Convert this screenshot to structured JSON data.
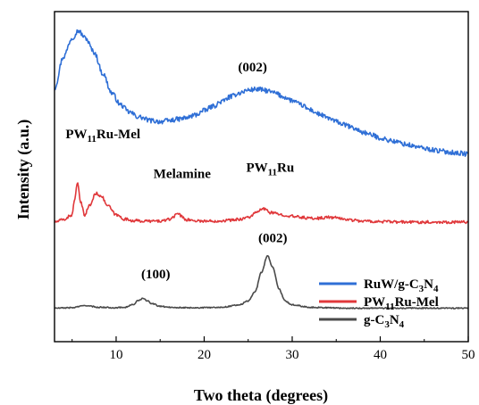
{
  "chart_data": {
    "type": "line",
    "title": "",
    "xlabel": "Two theta (degrees)",
    "ylabel": "Intensity (a.u.)",
    "xlim": [
      3,
      50
    ],
    "xticks": [
      "10",
      "20",
      "30",
      "40",
      "50"
    ],
    "yticks_shown": false,
    "grid": false,
    "legend_position": "bottom-right",
    "series": [
      {
        "name": "RuW/g-C3N4",
        "legend_parts": [
          "RuW/g-C",
          "3",
          "N",
          "4"
        ],
        "color": "#2f6fd6",
        "noise": 0.05,
        "x": [
          3,
          4,
          5,
          5.7,
          6.5,
          7.5,
          8.5,
          9.5,
          10.5,
          11.5,
          12.5,
          14,
          15,
          16,
          17,
          18,
          19,
          20,
          21,
          22,
          23,
          24,
          25,
          26,
          27,
          28,
          29,
          30,
          31,
          32,
          33,
          34,
          35,
          36,
          37,
          38,
          39,
          40,
          41,
          42,
          43,
          44,
          45,
          46,
          47,
          48,
          49,
          50
        ],
        "y": [
          5.8,
          6.45,
          6.85,
          7.0,
          6.85,
          6.55,
          6.1,
          5.7,
          5.45,
          5.3,
          5.2,
          5.12,
          5.1,
          5.12,
          5.15,
          5.18,
          5.24,
          5.33,
          5.42,
          5.52,
          5.62,
          5.7,
          5.76,
          5.78,
          5.75,
          5.7,
          5.62,
          5.54,
          5.45,
          5.35,
          5.26,
          5.18,
          5.1,
          5.03,
          4.96,
          4.88,
          4.82,
          4.76,
          4.71,
          4.67,
          4.62,
          4.58,
          4.54,
          4.51,
          4.48,
          4.46,
          4.44,
          4.42
        ]
      },
      {
        "name": "PW11Ru-Mel",
        "legend_parts": [
          "PW",
          "11",
          "Ru-Mel"
        ],
        "color": "#e0383b",
        "noise": 0.03,
        "x": [
          3,
          4,
          5,
          5.3,
          5.6,
          6.0,
          6.4,
          7.0,
          7.7,
          8.3,
          9.0,
          10,
          11,
          12,
          13,
          14,
          15,
          16,
          16.6,
          17,
          17.4,
          18,
          19,
          20,
          21,
          22,
          23,
          24,
          25,
          26,
          26.6,
          27,
          27.5,
          28,
          29,
          30,
          31,
          32,
          33,
          34,
          35,
          36,
          37,
          38,
          40,
          42,
          44,
          46,
          48,
          50
        ],
        "y": [
          3.0,
          3.05,
          3.15,
          3.5,
          3.8,
          3.4,
          3.15,
          3.35,
          3.6,
          3.55,
          3.35,
          3.15,
          3.06,
          3.03,
          3.02,
          3.02,
          3.02,
          3.05,
          3.12,
          3.2,
          3.12,
          3.05,
          3.03,
          3.02,
          3.02,
          3.03,
          3.04,
          3.06,
          3.1,
          3.2,
          3.28,
          3.26,
          3.2,
          3.18,
          3.15,
          3.12,
          3.1,
          3.08,
          3.08,
          3.1,
          3.09,
          3.06,
          3.04,
          3.02,
          3.01,
          3.0,
          3.0,
          3.0,
          3.0,
          3.0
        ]
      },
      {
        "name": "g-C3N4",
        "legend_parts": [
          "g-C",
          "3",
          "N",
          "4"
        ],
        "color": "#4a4a4a",
        "noise": 0.012,
        "x": [
          3,
          5,
          6,
          6.5,
          7,
          8,
          10,
          11,
          12,
          12.5,
          13,
          13.5,
          14,
          15,
          16,
          18,
          20,
          22,
          24,
          25,
          25.8,
          26.5,
          27.2,
          27.8,
          28.5,
          29.2,
          30,
          32,
          34,
          36,
          40,
          45,
          50
        ],
        "y": [
          1.2,
          1.21,
          1.24,
          1.26,
          1.24,
          1.22,
          1.21,
          1.22,
          1.28,
          1.36,
          1.4,
          1.36,
          1.3,
          1.24,
          1.22,
          1.21,
          1.21,
          1.22,
          1.27,
          1.35,
          1.55,
          1.95,
          2.3,
          2.05,
          1.6,
          1.35,
          1.27,
          1.22,
          1.21,
          1.2,
          1.2,
          1.2,
          1.2
        ]
      }
    ],
    "annotations": [
      {
        "key": "002_top",
        "parts": [
          "(002)"
        ],
        "x": 25.5,
        "y": 6.15
      },
      {
        "key": "pw11ru_mel",
        "parts": [
          "PW",
          "11",
          "Ru-Mel"
        ],
        "x": 8.5,
        "y": 4.75
      },
      {
        "key": "melamine",
        "parts": [
          "Melamine"
        ],
        "x": 17.5,
        "y": 3.92
      },
      {
        "key": "pw11ru",
        "parts": [
          "PW",
          "11",
          "Ru"
        ],
        "x": 27.5,
        "y": 4.05
      },
      {
        "key": "100",
        "parts": [
          "(100)"
        ],
        "x": 14.5,
        "y": 1.82
      },
      {
        "key": "002_bottom",
        "parts": [
          "(002)"
        ],
        "x": 27.8,
        "y": 2.58
      }
    ]
  }
}
